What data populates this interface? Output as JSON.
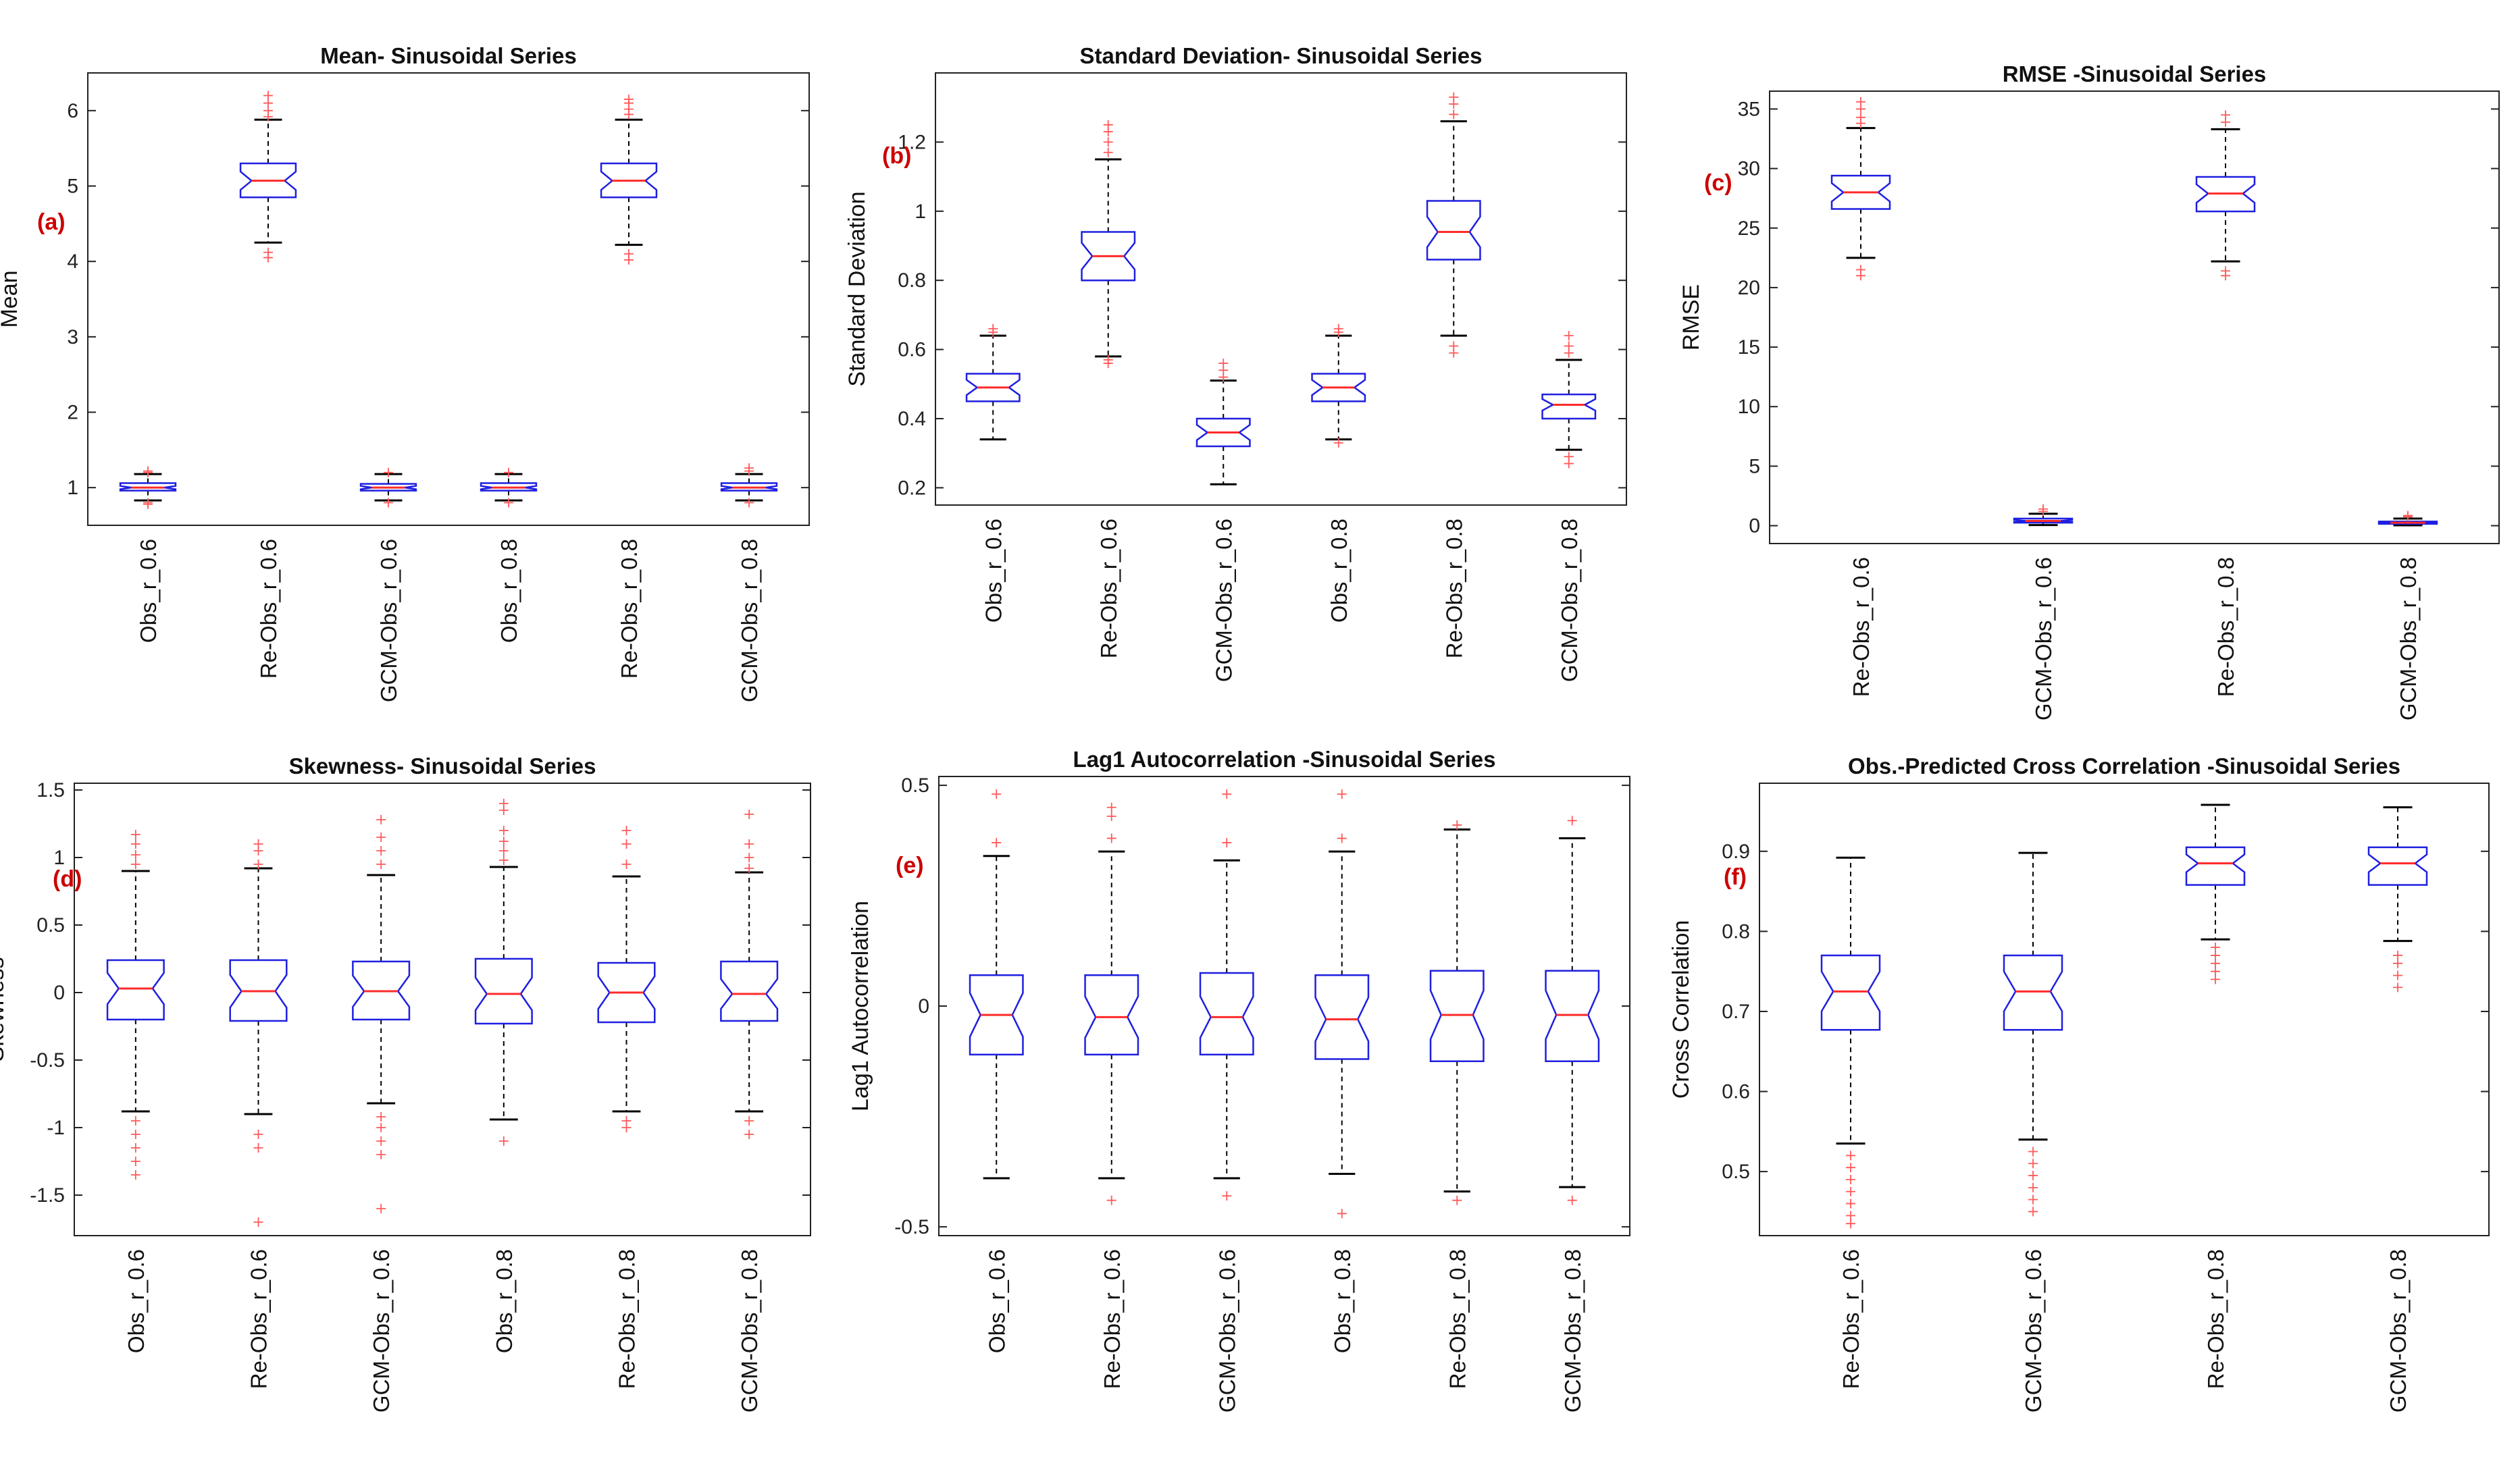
{
  "chart_data": [
    {
      "type": "boxplot",
      "panel_label": "(a)",
      "title": "Mean- Sinusoidal Series",
      "ylabel": "Mean",
      "ylim": [
        0.5,
        6.5
      ],
      "yticks": [
        1,
        2,
        3,
        4,
        5,
        6
      ],
      "yticklabels": [
        "1",
        "2",
        "3",
        "4",
        "5",
        "6"
      ],
      "categories": [
        "Obs_r_0.6",
        "Re-Obs_r_0.6",
        "GCM-Obs_r_0.6",
        "Obs_r_0.8",
        "Re-Obs_r_0.8",
        "GCM-Obs_r_0.8"
      ],
      "boxes": [
        {
          "wlo": 0.83,
          "q1": 0.96,
          "med": 1.0,
          "q3": 1.06,
          "whi": 1.18,
          "out": [
            0.8,
            0.78,
            1.2,
            1.22
          ]
        },
        {
          "wlo": 4.25,
          "q1": 4.85,
          "med": 5.07,
          "q3": 5.3,
          "whi": 5.88,
          "out": [
            4.12,
            4.05,
            5.92,
            6.0,
            6.1,
            6.2
          ]
        },
        {
          "wlo": 0.83,
          "q1": 0.96,
          "med": 1.0,
          "q3": 1.05,
          "whi": 1.18,
          "out": [
            0.8,
            1.2
          ]
        },
        {
          "wlo": 0.83,
          "q1": 0.96,
          "med": 1.0,
          "q3": 1.06,
          "whi": 1.18,
          "out": [
            0.8,
            1.2
          ]
        },
        {
          "wlo": 4.22,
          "q1": 4.85,
          "med": 5.07,
          "q3": 5.3,
          "whi": 5.88,
          "out": [
            4.1,
            4.02,
            5.95,
            6.02,
            6.1,
            6.15
          ]
        },
        {
          "wlo": 0.83,
          "q1": 0.96,
          "med": 1.0,
          "q3": 1.06,
          "whi": 1.18,
          "out": [
            0.8,
            1.22,
            1.26
          ]
        }
      ]
    },
    {
      "type": "boxplot",
      "panel_label": "(b)",
      "title": "Standard Deviation- Sinusoidal Series",
      "ylabel": "Standard Deviation",
      "ylim": [
        0.15,
        1.4
      ],
      "yticks": [
        0.2,
        0.4,
        0.6,
        0.8,
        1.0,
        1.2
      ],
      "yticklabels": [
        "0.2",
        "0.4",
        "0.6",
        "0.8",
        "1",
        "1.2"
      ],
      "categories": [
        "Obs_r_0.6",
        "Re-Obs_r_0.6",
        "GCM-Obs_r_0.6",
        "Obs_r_0.8",
        "Re-Obs_r_0.8",
        "GCM-Obs_r_0.8"
      ],
      "boxes": [
        {
          "wlo": 0.34,
          "q1": 0.45,
          "med": 0.49,
          "q3": 0.53,
          "whi": 0.64,
          "out": [
            0.65,
            0.66
          ]
        },
        {
          "wlo": 0.58,
          "q1": 0.8,
          "med": 0.87,
          "q3": 0.94,
          "whi": 1.15,
          "out": [
            0.56,
            0.57,
            1.17,
            1.2,
            1.23,
            1.25
          ]
        },
        {
          "wlo": 0.21,
          "q1": 0.32,
          "med": 0.36,
          "q3": 0.4,
          "whi": 0.51,
          "out": [
            0.52,
            0.54,
            0.56
          ]
        },
        {
          "wlo": 0.34,
          "q1": 0.45,
          "med": 0.49,
          "q3": 0.53,
          "whi": 0.64,
          "out": [
            0.33,
            0.65,
            0.66
          ]
        },
        {
          "wlo": 0.64,
          "q1": 0.86,
          "med": 0.94,
          "q3": 1.03,
          "whi": 1.26,
          "out": [
            0.59,
            0.61,
            1.28,
            1.31,
            1.33
          ]
        },
        {
          "wlo": 0.31,
          "q1": 0.4,
          "med": 0.44,
          "q3": 0.47,
          "whi": 0.57,
          "out": [
            0.27,
            0.29,
            0.59,
            0.61,
            0.64
          ]
        }
      ]
    },
    {
      "type": "boxplot",
      "panel_label": "(c)",
      "title": "RMSE -Sinusoidal Series",
      "ylabel": "RMSE",
      "ylim": [
        -1.5,
        36.5
      ],
      "yticks": [
        0,
        5,
        10,
        15,
        20,
        25,
        30,
        35
      ],
      "yticklabels": [
        "0",
        "5",
        "10",
        "15",
        "20",
        "25",
        "30",
        "35"
      ],
      "categories": [
        "Re-Obs_r_0.6",
        "GCM-Obs_r_0.6",
        "Re-Obs_r_0.8",
        "GCM-Obs_r_0.8"
      ],
      "boxes": [
        {
          "wlo": 22.5,
          "q1": 26.6,
          "med": 28.0,
          "q3": 29.4,
          "whi": 33.4,
          "out": [
            21.5,
            21.0,
            33.8,
            34.3,
            35.0,
            35.6
          ]
        },
        {
          "wlo": 0.05,
          "q1": 0.25,
          "med": 0.4,
          "q3": 0.6,
          "whi": 1.0,
          "out": [
            1.2,
            1.4
          ]
        },
        {
          "wlo": 22.2,
          "q1": 26.4,
          "med": 27.9,
          "q3": 29.3,
          "whi": 33.3,
          "out": [
            21.4,
            21.0,
            33.9,
            34.5
          ]
        },
        {
          "wlo": 0.03,
          "q1": 0.15,
          "med": 0.25,
          "q3": 0.35,
          "whi": 0.6,
          "out": [
            0.75,
            0.85
          ]
        }
      ]
    },
    {
      "type": "boxplot",
      "panel_label": "(d)",
      "title": "Skewness- Sinusoidal Series",
      "ylabel": "Skewness",
      "ylim": [
        -1.8,
        1.55
      ],
      "yticks": [
        -1.5,
        -1.0,
        -0.5,
        0,
        0.5,
        1.0,
        1.5
      ],
      "yticklabels": [
        "-1.5",
        "-1",
        "-0.5",
        "0",
        "0.5",
        "1",
        "1.5"
      ],
      "categories": [
        "Obs_r_0.6",
        "Re-Obs_r_0.6",
        "GCM-Obs_r_0.6",
        "Obs_r_0.8",
        "Re-Obs_r_0.8",
        "GCM-Obs_r_0.8"
      ],
      "boxes": [
        {
          "wlo": -0.88,
          "q1": -0.2,
          "med": 0.03,
          "q3": 0.24,
          "whi": 0.9,
          "out": [
            -0.95,
            -1.05,
            -1.15,
            -1.25,
            -1.35,
            0.95,
            1.02,
            1.1,
            1.17
          ]
        },
        {
          "wlo": -0.9,
          "q1": -0.21,
          "med": 0.01,
          "q3": 0.24,
          "whi": 0.92,
          "out": [
            -1.05,
            -1.15,
            -1.7,
            0.95,
            1.05,
            1.1
          ]
        },
        {
          "wlo": -0.82,
          "q1": -0.2,
          "med": 0.01,
          "q3": 0.23,
          "whi": 0.87,
          "out": [
            -0.92,
            -1.0,
            -1.1,
            -1.2,
            -1.6,
            0.95,
            1.05,
            1.15,
            1.28
          ]
        },
        {
          "wlo": -0.94,
          "q1": -0.23,
          "med": -0.01,
          "q3": 0.25,
          "whi": 0.93,
          "out": [
            -1.1,
            0.98,
            1.05,
            1.12,
            1.2,
            1.35,
            1.4
          ]
        },
        {
          "wlo": -0.88,
          "q1": -0.22,
          "med": 0.0,
          "q3": 0.22,
          "whi": 0.86,
          "out": [
            -0.95,
            -1.0,
            0.95,
            1.1,
            1.2
          ]
        },
        {
          "wlo": -0.88,
          "q1": -0.21,
          "med": -0.01,
          "q3": 0.23,
          "whi": 0.89,
          "out": [
            -0.95,
            -1.05,
            0.92,
            1.0,
            1.1,
            1.32
          ]
        }
      ]
    },
    {
      "type": "boxplot",
      "panel_label": "(e)",
      "title": "Lag1 Autocorrelation -Sinusoidal Series",
      "ylabel": "Lag1 Autocorrelation",
      "ylim": [
        -0.52,
        0.52
      ],
      "yticks": [
        -0.5,
        0,
        0.5
      ],
      "yticklabels": [
        "-0.5",
        "0",
        "0.5"
      ],
      "categories": [
        "Obs_r_0.6",
        "Re-Obs_r_0.6",
        "GCM-Obs_r_0.6",
        "Obs_r_0.8",
        "Re-Obs_r_0.8",
        "GCM-Obs_r_0.8"
      ],
      "boxes": [
        {
          "wlo": -0.39,
          "q1": -0.11,
          "med": -0.02,
          "q3": 0.07,
          "whi": 0.34,
          "out": [
            0.37,
            0.48
          ]
        },
        {
          "wlo": -0.39,
          "q1": -0.11,
          "med": -0.025,
          "q3": 0.07,
          "whi": 0.35,
          "out": [
            -0.44,
            0.38,
            0.43,
            0.45
          ]
        },
        {
          "wlo": -0.39,
          "q1": -0.11,
          "med": -0.025,
          "q3": 0.075,
          "whi": 0.33,
          "out": [
            -0.43,
            0.37,
            0.48
          ]
        },
        {
          "wlo": -0.38,
          "q1": -0.12,
          "med": -0.03,
          "q3": 0.07,
          "whi": 0.35,
          "out": [
            -0.47,
            0.38,
            0.48
          ]
        },
        {
          "wlo": -0.42,
          "q1": -0.125,
          "med": -0.02,
          "q3": 0.08,
          "whi": 0.4,
          "out": [
            -0.44,
            0.41
          ]
        },
        {
          "wlo": -0.41,
          "q1": -0.125,
          "med": -0.02,
          "q3": 0.08,
          "whi": 0.38,
          "out": [
            -0.44,
            0.42
          ]
        }
      ]
    },
    {
      "type": "boxplot",
      "panel_label": "(f)",
      "title": "Obs.-Predicted Cross Correlation -Sinusoidal Series",
      "ylabel": "Cross Correlation",
      "ylim": [
        0.42,
        0.985
      ],
      "yticks": [
        0.5,
        0.6,
        0.7,
        0.8,
        0.9
      ],
      "yticklabels": [
        "0.5",
        "0.6",
        "0.7",
        "0.8",
        "0.9"
      ],
      "categories": [
        "Re-Obs_r_0.6",
        "GCM-Obs_r_0.6",
        "Re-Obs_r_0.8",
        "GCM-Obs_r_0.8"
      ],
      "boxes": [
        {
          "wlo": 0.535,
          "q1": 0.677,
          "med": 0.725,
          "q3": 0.77,
          "whi": 0.892,
          "out": [
            0.52,
            0.505,
            0.49,
            0.475,
            0.46,
            0.445,
            0.435
          ]
        },
        {
          "wlo": 0.54,
          "q1": 0.677,
          "med": 0.725,
          "q3": 0.77,
          "whi": 0.898,
          "out": [
            0.525,
            0.51,
            0.495,
            0.48,
            0.465,
            0.45
          ]
        },
        {
          "wlo": 0.79,
          "q1": 0.858,
          "med": 0.885,
          "q3": 0.905,
          "whi": 0.958,
          "out": [
            0.78,
            0.77,
            0.76,
            0.75,
            0.74
          ]
        },
        {
          "wlo": 0.788,
          "q1": 0.858,
          "med": 0.885,
          "q3": 0.905,
          "whi": 0.955,
          "out": [
            0.77,
            0.76,
            0.745,
            0.73
          ]
        }
      ]
    }
  ]
}
